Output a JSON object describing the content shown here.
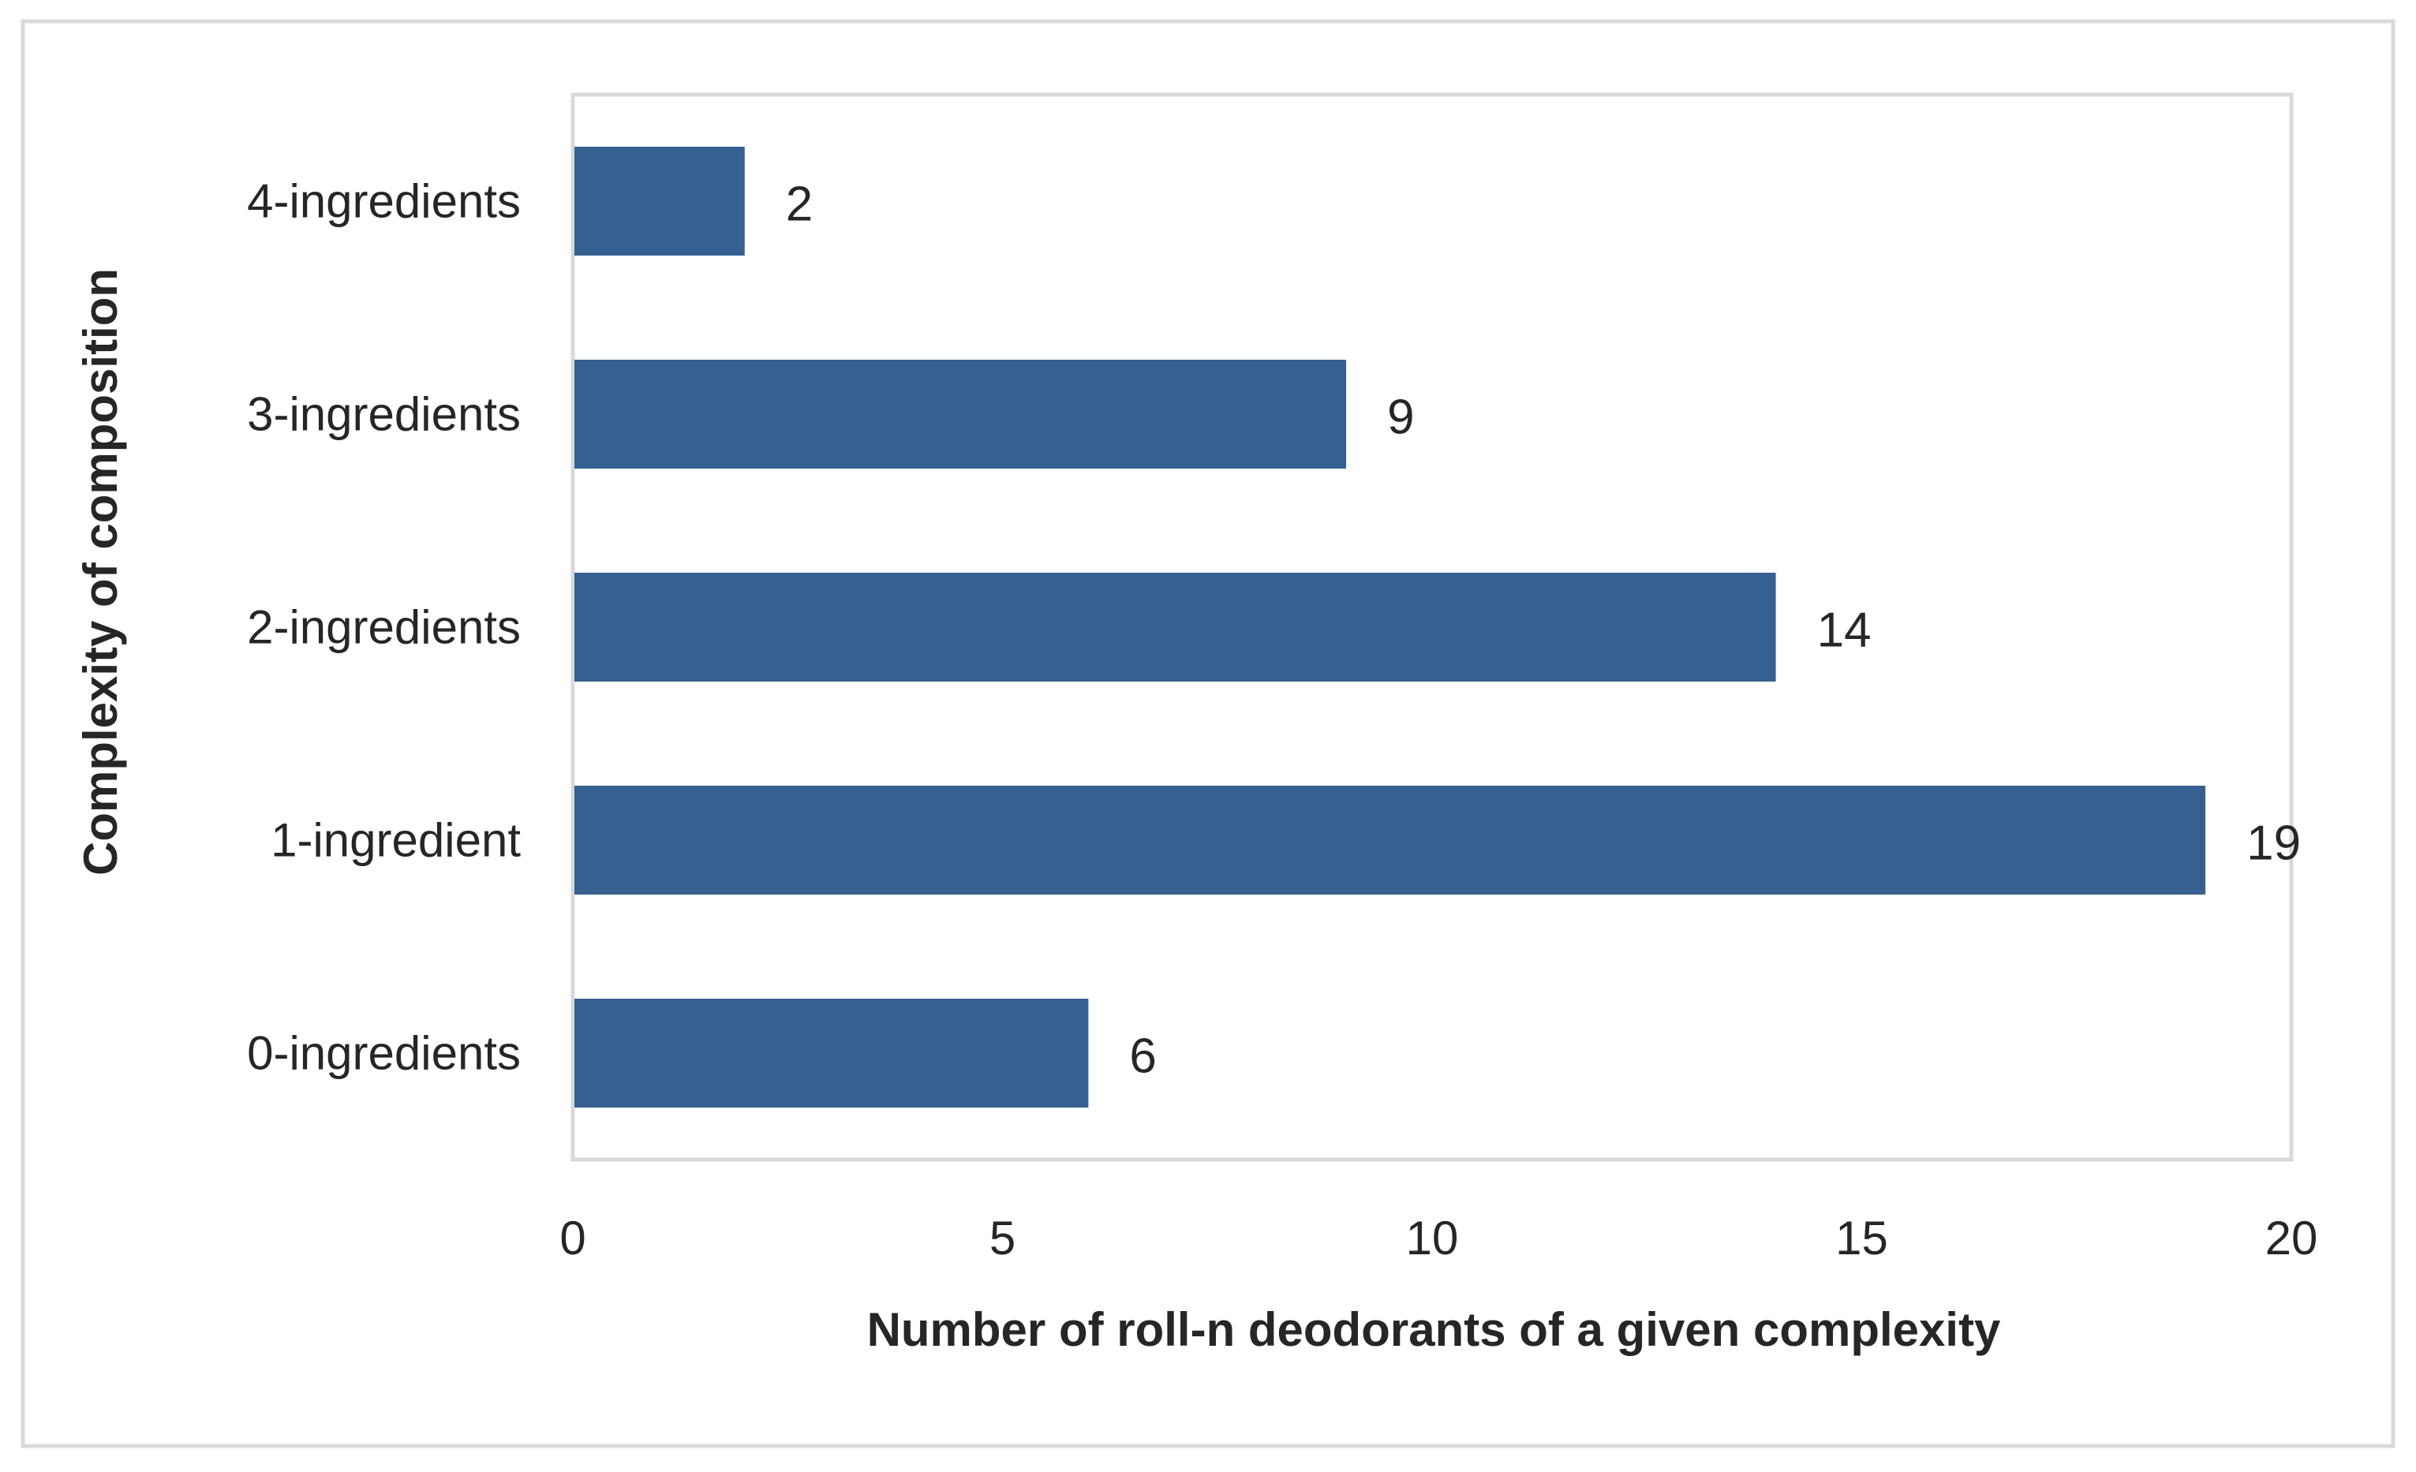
{
  "chart_data": {
    "type": "bar",
    "orientation": "horizontal",
    "categories": [
      "0-ingredients",
      "1-ingredient",
      "2-ingredients",
      "3-ingredients",
      "4-ingredients"
    ],
    "values": [
      6,
      19,
      14,
      9,
      2
    ],
    "data_labels": [
      "6",
      "19",
      "14",
      "9",
      "2"
    ],
    "xlabel": "Number of roll-n deodorants of a given complexity",
    "ylabel": "Complexity of composition",
    "xlim": [
      0,
      20
    ],
    "x_ticks": [
      0,
      5,
      10,
      15,
      20
    ],
    "x_tick_labels": [
      "0",
      "5",
      "10",
      "15",
      "20"
    ],
    "grid": false,
    "legend": "none",
    "colors": {
      "bar": "#36608F",
      "plot_border": "#D9D9D9",
      "frame_border": "#D9D9D9",
      "text": "#262626"
    }
  }
}
